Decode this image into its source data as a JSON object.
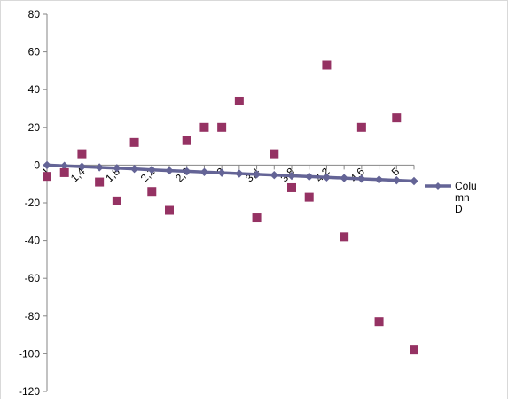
{
  "chart_data": {
    "type": "scatter",
    "title": "",
    "xlabel": "",
    "ylabel": "",
    "ylim": [
      -120,
      80
    ],
    "y_ticks": [
      80,
      60,
      40,
      20,
      0,
      -20,
      -40,
      -60,
      -80,
      -100,
      -120
    ],
    "x_tick_labels": [
      "1",
      "1,4",
      "1,8",
      "2,2",
      "2,6",
      "3",
      "3,4",
      "3,8",
      "4,2",
      "4,6",
      "5"
    ],
    "x": [
      1,
      1.2,
      1.4,
      1.6,
      1.8,
      2.0,
      2.2,
      2.4,
      2.6,
      2.8,
      3.0,
      3.2,
      3.4,
      3.6,
      3.8,
      4.0,
      4.2,
      4.4,
      4.6,
      4.8,
      5.0,
      5.2
    ],
    "grid": "horizontal-axis-line-only",
    "legend_position": "right",
    "series": [
      {
        "marker": "square",
        "color": "#953263",
        "values": [
          -6,
          -4,
          6,
          -9,
          -19,
          12,
          -14,
          -24,
          13,
          20,
          20,
          34,
          -28,
          6,
          -12,
          -17,
          53,
          -38,
          20,
          -83,
          25,
          -98
        ]
      },
      {
        "name": "Column D",
        "legend_lines": [
          "Colu",
          "mn",
          "D"
        ],
        "marker": "diamond-line",
        "color": "#646496",
        "values": [
          0,
          -0.4,
          -0.8,
          -1.2,
          -1.6,
          -2.0,
          -2.5,
          -2.9,
          -3.3,
          -3.7,
          -4.1,
          -4.5,
          -4.9,
          -5.3,
          -5.7,
          -6.1,
          -6.5,
          -6.9,
          -7.3,
          -7.7,
          -8.1,
          -8.5
        ]
      }
    ]
  }
}
